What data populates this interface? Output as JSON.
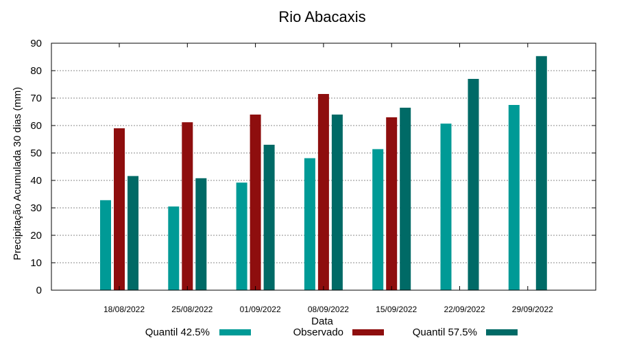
{
  "chart_data": {
    "type": "bar",
    "title": "Rio Abacaxis",
    "xlabel": "Data",
    "ylabel": "Precipitação Acumulada 30 dias (mm)",
    "ylim": [
      0,
      90
    ],
    "yticks": [
      0,
      10,
      20,
      30,
      40,
      50,
      60,
      70,
      80,
      90
    ],
    "grid": true,
    "legend_position": "bottom",
    "categories": [
      "18/08/2022",
      "25/08/2022",
      "01/09/2022",
      "08/09/2022",
      "15/09/2022",
      "22/09/2022",
      "29/09/2022"
    ],
    "series": [
      {
        "name": "Quantil 42.5%",
        "color": "#009a96",
        "values": [
          32.8,
          30.5,
          39.2,
          48.1,
          51.4,
          60.7,
          67.5
        ]
      },
      {
        "name": "Observado",
        "color": "#8e0e0e",
        "values": [
          59.0,
          61.2,
          64.0,
          71.5,
          63.0,
          null,
          null
        ]
      },
      {
        "name": "Quantil 57.5%",
        "color": "#006a66",
        "values": [
          41.6,
          40.8,
          53.0,
          64.0,
          66.5,
          77.0,
          85.3
        ]
      }
    ]
  }
}
